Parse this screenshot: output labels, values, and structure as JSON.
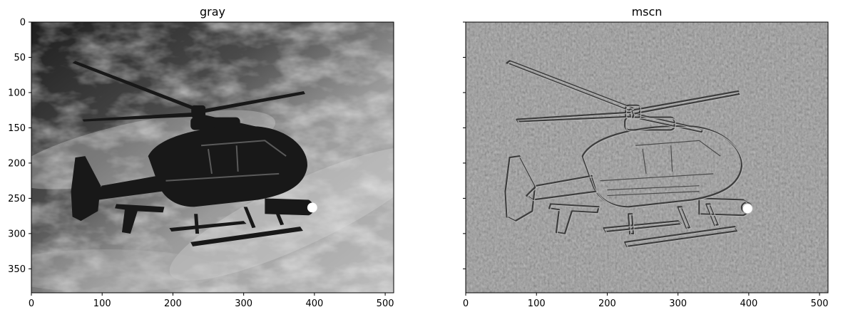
{
  "panels": [
    {
      "title": "gray",
      "type": "image",
      "x_range": [
        0,
        512
      ],
      "y_range": [
        0,
        384
      ],
      "x_ticks": [
        0,
        100,
        200,
        300,
        400,
        500
      ],
      "y_ticks": [
        0,
        50,
        100,
        150,
        200,
        250,
        300,
        350
      ],
      "show_y_tick_labels": true
    },
    {
      "title": "mscn",
      "type": "image",
      "x_range": [
        0,
        512
      ],
      "y_range": [
        0,
        384
      ],
      "x_ticks": [
        0,
        100,
        200,
        300,
        400,
        500
      ],
      "y_ticks": [
        0,
        50,
        100,
        150,
        200,
        250,
        300,
        350
      ],
      "show_y_tick_labels": false
    }
  ]
}
